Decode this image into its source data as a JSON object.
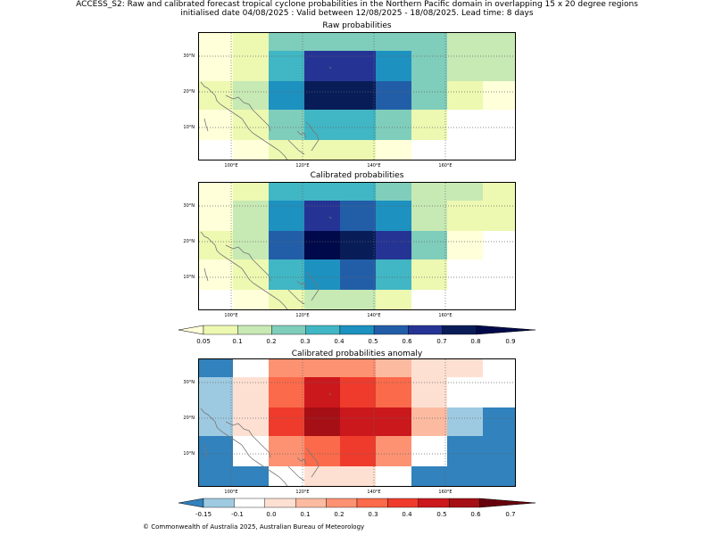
{
  "header": {
    "line1": "ACCESS_S2: Raw and calibrated forecast tropical cyclone probabilities in the Northern Pacific domain in overlapping 15 x 20 degree regions",
    "line2": "initialised date 04/08/2025 :  Valid between 12/08/2025 - 18/08/2025. Lead time: 8 days"
  },
  "panels": [
    {
      "title": "Raw probabilities",
      "color_index_grid": [
        [
          0,
          1,
          3,
          3,
          3,
          3,
          3,
          2,
          2
        ],
        [
          0,
          1,
          4,
          7,
          7,
          5,
          3,
          2,
          2
        ],
        [
          1,
          2,
          5,
          8,
          8,
          6,
          3,
          1,
          0
        ],
        [
          0,
          1,
          3,
          4,
          4,
          3,
          1,
          -1,
          -1
        ],
        [
          -1,
          0,
          1,
          1,
          1,
          0,
          -1,
          -1,
          -1
        ]
      ]
    },
    {
      "title": "Calibrated probabilities",
      "color_index_grid": [
        [
          0,
          1,
          4,
          4,
          4,
          3,
          2,
          2,
          1
        ],
        [
          0,
          2,
          5,
          7,
          6,
          5,
          2,
          1,
          1
        ],
        [
          1,
          2,
          6,
          9,
          8,
          7,
          3,
          0,
          -1
        ],
        [
          0,
          1,
          4,
          5,
          6,
          4,
          1,
          -1,
          -1
        ],
        [
          -1,
          0,
          1,
          2,
          2,
          1,
          -1,
          -1,
          -1
        ]
      ]
    },
    {
      "title": "Calibrated probabilities anomaly",
      "color_index_grid": [
        [
          0,
          2,
          5,
          5,
          5,
          4,
          3,
          3,
          2
        ],
        [
          1,
          3,
          6,
          8,
          7,
          6,
          3,
          2,
          2
        ],
        [
          1,
          3,
          7,
          9,
          8,
          8,
          4,
          1,
          0
        ],
        [
          0,
          2,
          5,
          6,
          7,
          5,
          2,
          0,
          0
        ],
        [
          0,
          0,
          2,
          3,
          3,
          2,
          0,
          0,
          0
        ]
      ]
    }
  ],
  "axes": {
    "lat_ticks": [
      "30°N",
      "20°N",
      "10°N"
    ],
    "lon_ticks": [
      "100°E",
      "120°E",
      "140°E",
      "160°E"
    ]
  },
  "colorbar_prob": {
    "labels": [
      "0.05",
      "0.1",
      "0.2",
      "0.3",
      "0.4",
      "0.5",
      "0.6",
      "0.7",
      "0.8",
      "0.9"
    ],
    "colors": [
      "#ffffd9",
      "#edf8b1",
      "#c7e9b4",
      "#7fcdbb",
      "#41b6c4",
      "#1d91c0",
      "#225ea8",
      "#253494",
      "#081d58",
      "#000a4a"
    ]
  },
  "colorbar_anom": {
    "labels": [
      "-0.15",
      "-0.1",
      "0.0",
      "0.1",
      "0.2",
      "0.3",
      "0.4",
      "0.5",
      "0.6",
      "0.7"
    ],
    "colors": [
      "#3182bd",
      "#9ecae1",
      "#ffffff",
      "#fee0d2",
      "#fcbba1",
      "#fc9272",
      "#fb6a4a",
      "#ef3b2c",
      "#cb181d",
      "#a50f15",
      "#67000d"
    ]
  },
  "footer": "© Commonwealth of Australia 2025, Australian Bureau of Meteorology"
}
